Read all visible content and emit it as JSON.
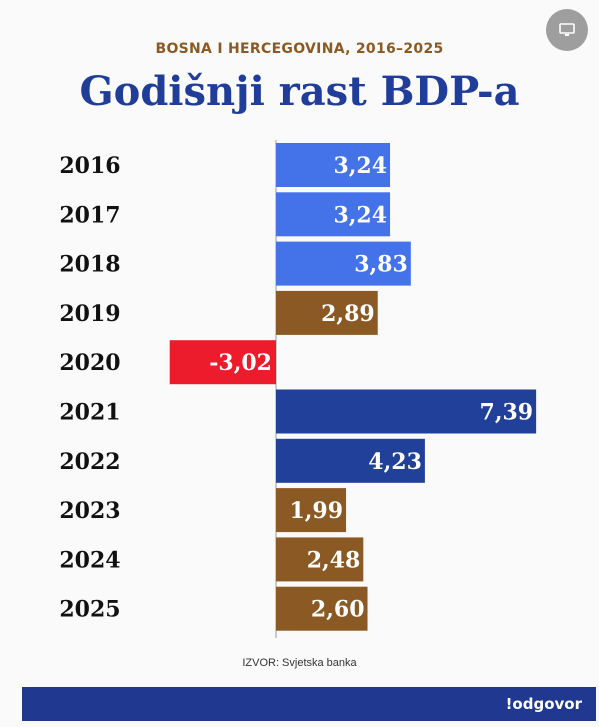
{
  "header": {
    "subtitle": "BOSNA I HERCEGOVINA, 2016–2025",
    "title": "Godišnji rast BDP-a",
    "corner_button_icon": "monitor-icon"
  },
  "chart_data": {
    "type": "bar",
    "orientation": "horizontal",
    "title": "Godišnji rast BDP-a",
    "subtitle": "BOSNA I HERCEGOVINA, 2016–2025",
    "categories": [
      "2016",
      "2017",
      "2018",
      "2019",
      "2020",
      "2021",
      "2022",
      "2023",
      "2024",
      "2025"
    ],
    "values": [
      3.24,
      3.24,
      3.83,
      2.89,
      -3.02,
      7.39,
      4.23,
      1.99,
      2.48,
      2.6
    ],
    "value_labels": [
      "3,24",
      "3,24",
      "3,83",
      "2,89",
      "-3,02",
      "7,39",
      "4,23",
      "1,99",
      "2,48",
      "2,60"
    ],
    "colors": [
      "#4472e8",
      "#4472e8",
      "#4472e8",
      "#8b5a24",
      "#ec1c2c",
      "#20409a",
      "#20409a",
      "#8b5a24",
      "#8b5a24",
      "#8b5a24"
    ],
    "axis_color": "#999999",
    "grid": false,
    "legend": "none"
  },
  "footer": {
    "source": "IZVOR: Svjetska banka",
    "logo": "!odgovor",
    "bar_color": "#20388f"
  }
}
